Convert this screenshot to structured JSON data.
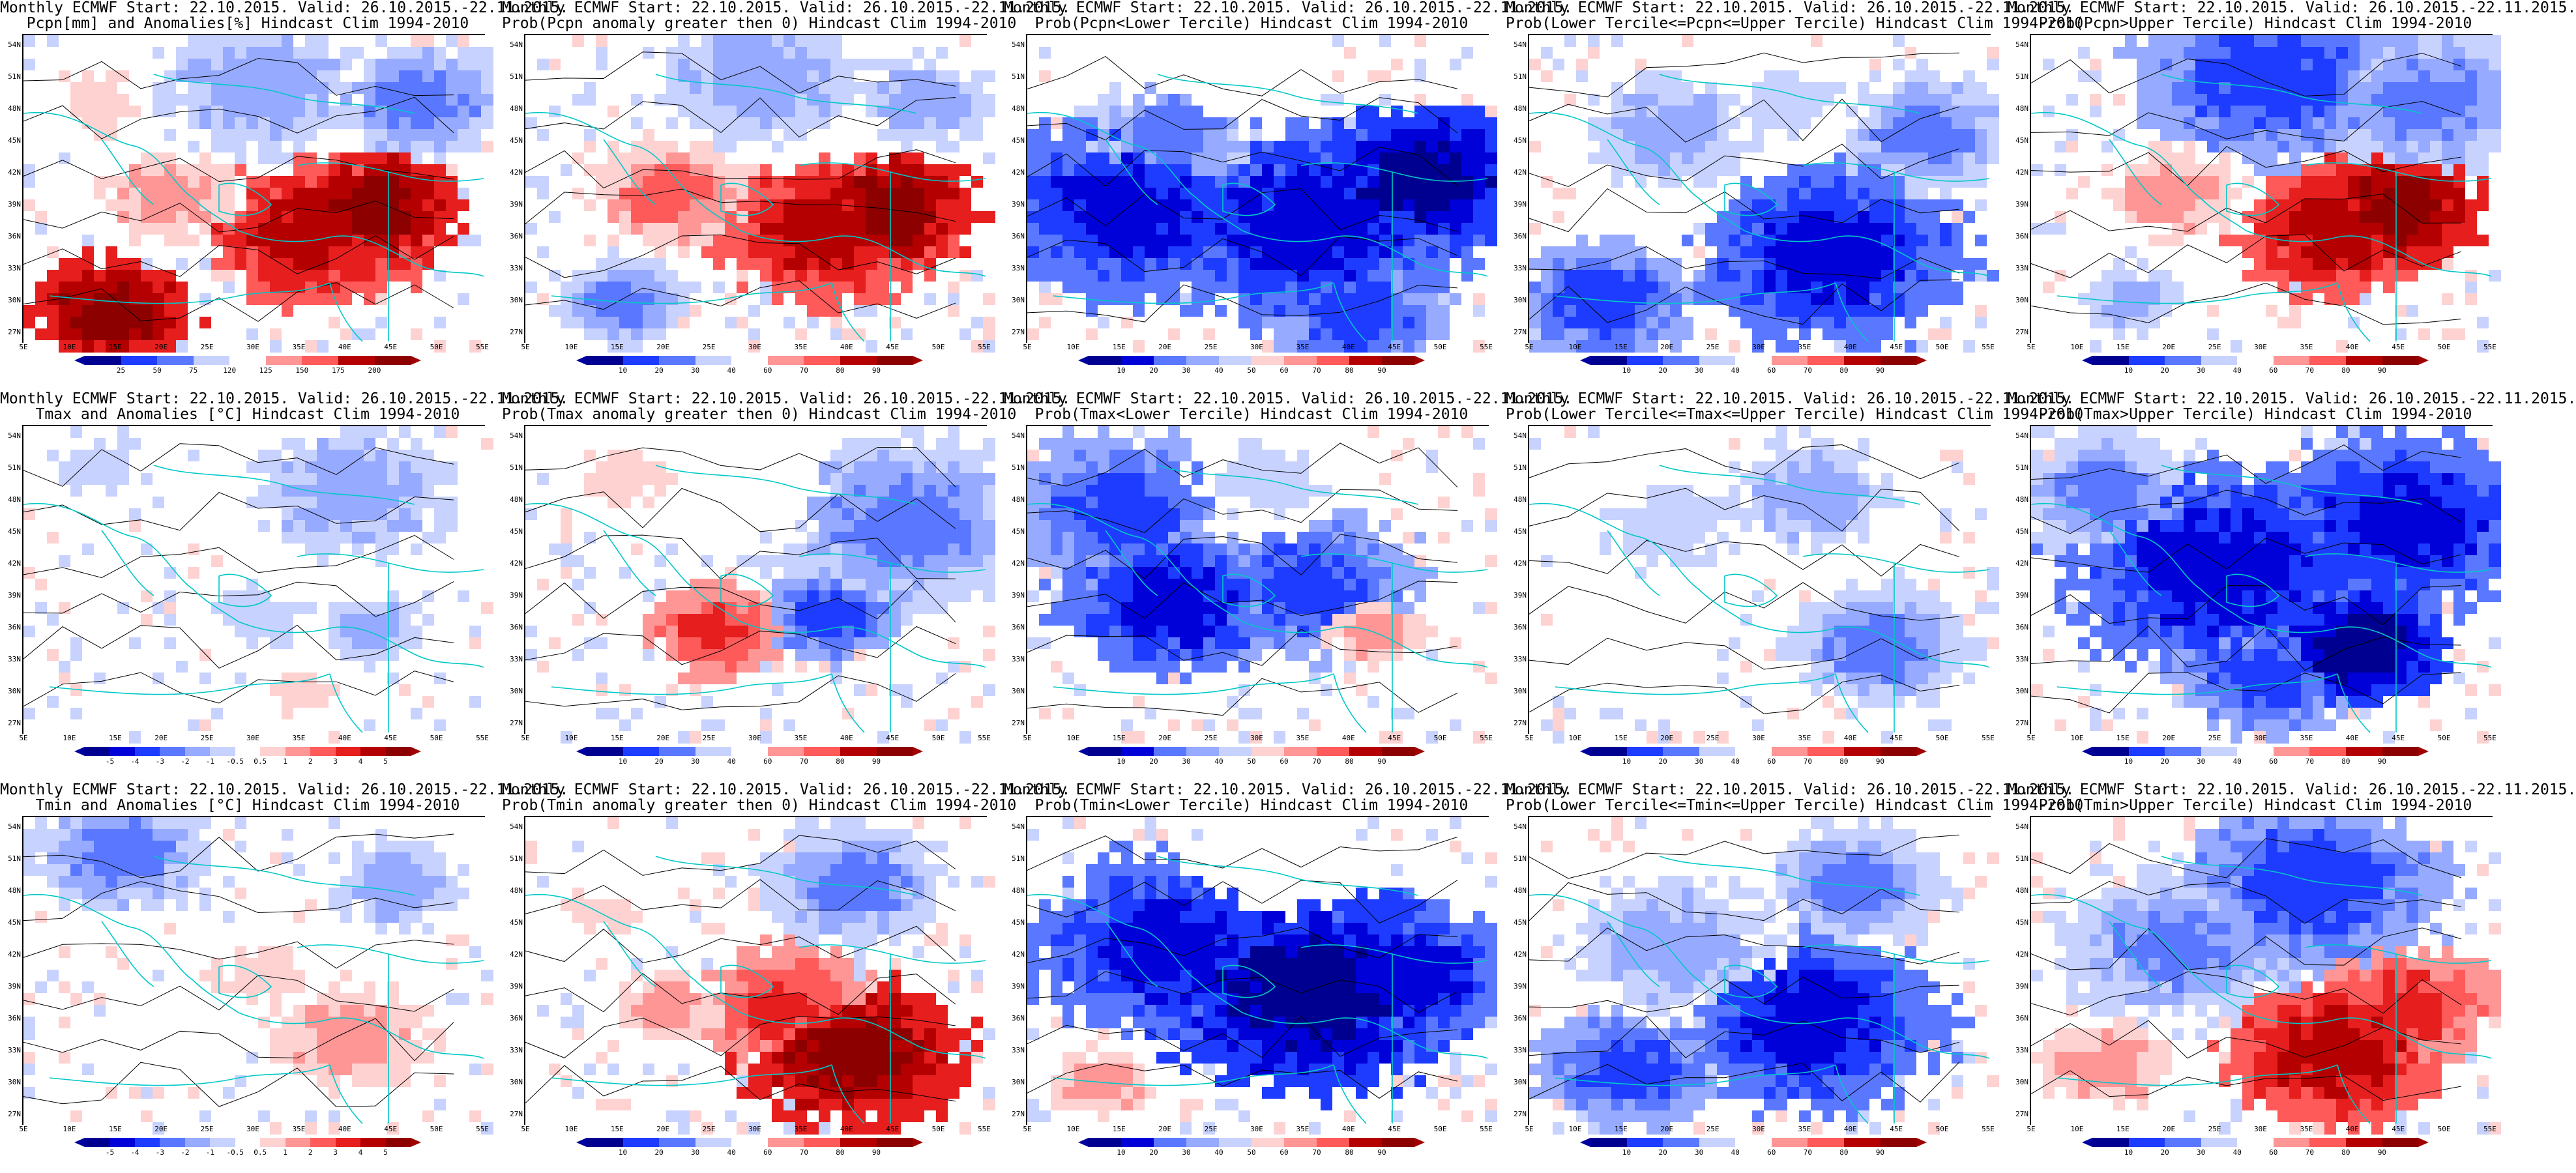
{
  "panels": [
    {
      "line1": "Monthly ECMWF Start: 22.10.2015. Valid: 26.10.2015.-22.11.2015.",
      "line2": "Pcpn[mm] and Anomalies[%] Hindcast Clim 1994-2010",
      "scheme": "anom",
      "field": "pcpn_anom",
      "colorbar": [
        "25",
        "50",
        "75",
        "120",
        "125",
        "150",
        "175",
        "200"
      ]
    },
    {
      "line1": "Monthly ECMWF Start: 22.10.2015. Valid: 26.10.2015.-22.11.2015.",
      "line2": "Prob(Pcpn anomaly greater then 0) Hindcast Clim 1994-2010",
      "scheme": "prob",
      "field": "pcpn_pos",
      "colorbar": [
        "10",
        "20",
        "30",
        "40",
        "60",
        "70",
        "80",
        "90"
      ]
    },
    {
      "line1": "Monthly ECMWF Start: 22.10.2015. Valid: 26.10.2015.-22.11.2015.",
      "line2": "Prob(Pcpn<Lower Tercile) Hindcast Clim 1994-2010",
      "scheme": "prob",
      "field": "pcpn_low",
      "colorbar": [
        "10",
        "20",
        "30",
        "40",
        "50",
        "60",
        "70",
        "80",
        "90"
      ]
    },
    {
      "line1": "Monthly ECMWF Start: 22.10.2015. Valid: 26.10.2015.-22.11.2015.",
      "line2": "Prob(Lower Tercile<=Pcpn<=Upper Tercile) Hindcast Clim 1994-2010",
      "scheme": "prob",
      "field": "pcpn_mid",
      "colorbar": [
        "10",
        "20",
        "30",
        "40",
        "60",
        "70",
        "80",
        "90"
      ]
    },
    {
      "line1": "Monthly ECMWF Start: 22.10.2015. Valid: 26.10.2015.-22.11.2015.",
      "line2": "Prob(Pcpn>Upper Tercile) Hindcast Clim 1994-2010",
      "scheme": "prob",
      "field": "pcpn_up",
      "colorbar": [
        "10",
        "20",
        "30",
        "40",
        "60",
        "70",
        "80",
        "90"
      ]
    },
    {
      "line1": "Monthly ECMWF Start: 22.10.2015. Valid: 26.10.2015.-22.11.2015.",
      "line2": "Tmax and Anomalies [°C] Hindcast Clim 1994-2010",
      "scheme": "anom",
      "field": "tmax_anom",
      "colorbar": [
        "-5",
        "-4",
        "-3",
        "-2",
        "-1",
        "-0.5",
        "0.5",
        "1",
        "2",
        "3",
        "4",
        "5"
      ]
    },
    {
      "line1": "Monthly ECMWF Start: 22.10.2015. Valid: 26.10.2015.-22.11.2015.",
      "line2": "Prob(Tmax anomaly greater then 0) Hindcast Clim 1994-2010",
      "scheme": "prob",
      "field": "tmax_pos",
      "colorbar": [
        "10",
        "20",
        "30",
        "40",
        "60",
        "70",
        "80",
        "90"
      ]
    },
    {
      "line1": "Monthly ECMWF Start: 22.10.2015. Valid: 26.10.2015.-22.11.2015.",
      "line2": "Prob(Tmax<Lower Tercile) Hindcast Clim 1994-2010",
      "scheme": "prob",
      "field": "tmax_low",
      "colorbar": [
        "10",
        "20",
        "30",
        "40",
        "50",
        "60",
        "70",
        "80",
        "90"
      ]
    },
    {
      "line1": "Monthly ECMWF Start: 22.10.2015. Valid: 26.10.2015.-22.11.2015.",
      "line2": "Prob(Lower Tercile<=Tmax<=Upper Tercile) Hindcast Clim 1994-2010",
      "scheme": "prob",
      "field": "tmax_mid",
      "colorbar": [
        "10",
        "20",
        "30",
        "40",
        "60",
        "70",
        "80",
        "90"
      ]
    },
    {
      "line1": "Monthly ECMWF Start: 22.10.2015. Valid: 26.10.2015.-22.11.2015.",
      "line2": "Prob(Tmax>Upper Tercile) Hindcast Clim 1994-2010",
      "scheme": "prob",
      "field": "tmax_up",
      "colorbar": [
        "10",
        "20",
        "30",
        "40",
        "60",
        "70",
        "80",
        "90"
      ]
    },
    {
      "line1": "Monthly ECMWF Start: 22.10.2015. Valid: 26.10.2015.-22.11.2015.",
      "line2": "Tmin and Anomalies [°C] Hindcast Clim 1994-2010",
      "scheme": "anom",
      "field": "tmin_anom",
      "colorbar": [
        "-5",
        "-4",
        "-3",
        "-2",
        "-1",
        "-0.5",
        "0.5",
        "1",
        "2",
        "3",
        "4",
        "5"
      ]
    },
    {
      "line1": "Monthly ECMWF Start: 22.10.2015. Valid: 26.10.2015.-22.11.2015.",
      "line2": "Prob(Tmin anomaly greater then 0) Hindcast Clim 1994-2010",
      "scheme": "prob",
      "field": "tmin_pos",
      "colorbar": [
        "10",
        "20",
        "30",
        "40",
        "60",
        "70",
        "80",
        "90"
      ]
    },
    {
      "line1": "Monthly ECMWF Start: 22.10.2015. Valid: 26.10.2015.-22.11.2015.",
      "line2": "Prob(Tmin<Lower Tercile) Hindcast Clim 1994-2010",
      "scheme": "prob",
      "field": "tmin_low",
      "colorbar": [
        "10",
        "20",
        "30",
        "40",
        "50",
        "60",
        "70",
        "80",
        "90"
      ]
    },
    {
      "line1": "Monthly ECMWF Start: 22.10.2015. Valid: 26.10.2015.-22.11.2015.",
      "line2": "Prob(Lower Tercile<=Tmin<=Upper Tercile) Hindcast Clim 1994-2010",
      "scheme": "prob",
      "field": "tmin_mid",
      "colorbar": [
        "10",
        "20",
        "30",
        "40",
        "60",
        "70",
        "80",
        "90"
      ]
    },
    {
      "line1": "Monthly ECMWF Start: 22.10.2015. Valid: 26.10.2015.-22.11.2015.",
      "line2": "Prob(Tmin>Upper Tercile) Hindcast Clim 1994-2010",
      "scheme": "prob",
      "field": "tmin_up",
      "colorbar": [
        "10",
        "20",
        "30",
        "40",
        "60",
        "70",
        "80",
        "90"
      ]
    }
  ],
  "lat_labels": [
    "54N",
    "51N",
    "48N",
    "45N",
    "42N",
    "39N",
    "36N",
    "33N",
    "30N",
    "27N"
  ],
  "lon_labels": [
    "5E",
    "10E",
    "15E",
    "20E",
    "25E",
    "30E",
    "35E",
    "40E",
    "45E",
    "50E",
    "55E"
  ],
  "colors": {
    "palette": [
      "#000090",
      "#0000d8",
      "#1e3cff",
      "#5a78ff",
      "#96aaff",
      "#c8d2ff",
      "#ffffff",
      "#ffd2d2",
      "#ff9696",
      "#ff5a5a",
      "#e61e1e",
      "#b40000",
      "#8c0000"
    ],
    "coastline": "#00c8c8",
    "contour": "#000000"
  }
}
